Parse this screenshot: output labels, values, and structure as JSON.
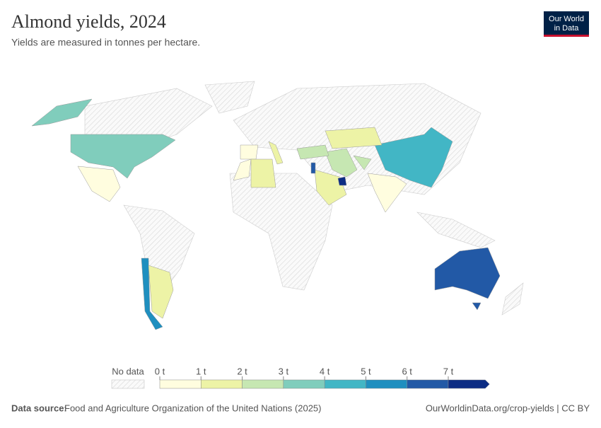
{
  "header": {
    "title": "Almond yields, 2024",
    "subtitle": "Yields are measured in tonnes per hectare.",
    "logo": [
      "Our World",
      "in Data"
    ]
  },
  "legend": {
    "no_data": "No data",
    "ticks": [
      {
        "value": 0,
        "label": "0 t"
      },
      {
        "value": 1,
        "label": "1 t"
      },
      {
        "value": 2,
        "label": "2 t"
      },
      {
        "value": 3,
        "label": "3 t"
      },
      {
        "value": 4,
        "label": "4 t"
      },
      {
        "value": 5,
        "label": "5 t"
      },
      {
        "value": 6,
        "label": "6 t"
      },
      {
        "value": 7,
        "label": "7 t"
      }
    ],
    "colors": [
      "#fffddf",
      "#edf3a6",
      "#c6e7b2",
      "#80cdbc",
      "#42b6c5",
      "#1f8fbf",
      "#2259a6",
      "#0c2c84"
    ]
  },
  "regions": {
    "values": [
      3.2,
      3.2,
      0.8,
      5.5,
      1.0,
      6.3,
      6.3,
      4.5,
      0.8,
      2.5,
      2.0,
      0.5,
      1.0,
      0.5,
      1.0,
      1.0,
      1.2,
      7.5,
      2.0,
      6.0
    ]
  },
  "footer": {
    "source_label": "Data source:",
    "source": "Food and Agriculture Organization of the United Nations (2025)",
    "link": "OurWorldinData.org/crop-yields | CC BY"
  }
}
